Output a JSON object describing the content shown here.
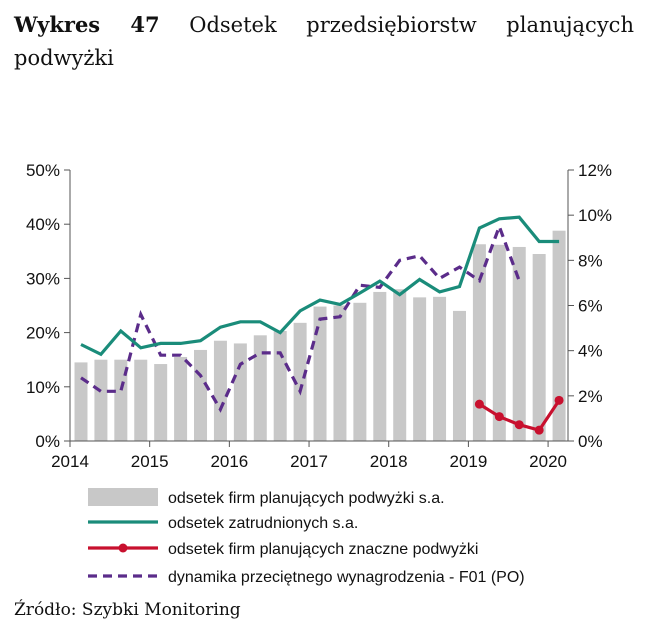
{
  "title_bold": "Wykres 47",
  "title_text": "Odsetek przedsiębiorstw planujących podwyżki",
  "source": "Źródło: Szybki Monitoring",
  "colors": {
    "bars": "#c8c8c8",
    "zatrudnionych": "#1a8c7a",
    "znaczne": "#c8102e",
    "dynamika": "#5b2c8a"
  },
  "chart_data": {
    "type": "bar",
    "x_ticks": [
      "2014",
      "2015",
      "2016",
      "2017",
      "2018",
      "2019",
      "2020"
    ],
    "y_left_ticks": [
      "0%",
      "10%",
      "20%",
      "30%",
      "40%",
      "50%"
    ],
    "y_right_ticks": [
      "0%",
      "2%",
      "4%",
      "6%",
      "8%",
      "10%",
      "12%"
    ],
    "ylim_left": [
      0,
      50
    ],
    "ylim_right": [
      0,
      12
    ],
    "legend_position": "bottom",
    "series": [
      {
        "name": "odsetek firm planujących podwyżki s.a.",
        "kind": "bar",
        "axis": "left",
        "x": [
          2014.0,
          2014.25,
          2014.5,
          2014.75,
          2015.0,
          2015.25,
          2015.5,
          2015.75,
          2016.0,
          2016.25,
          2016.5,
          2016.75,
          2017.0,
          2017.25,
          2017.5,
          2017.75,
          2018.0,
          2018.25,
          2018.5,
          2018.75,
          2019.0,
          2019.25,
          2019.5,
          2019.75,
          2020.0
        ],
        "values": [
          14.5,
          15.0,
          15.0,
          15.0,
          14.2,
          15.5,
          16.8,
          18.5,
          18.0,
          19.5,
          20.3,
          21.8,
          24.8,
          25.0,
          25.5,
          27.5,
          28.0,
          26.5,
          26.6,
          24.0,
          36.3,
          36.2,
          35.8,
          34.5,
          38.8
        ]
      },
      {
        "name": "odsetek zatrudnionych s.a.",
        "kind": "line",
        "axis": "left",
        "x": [
          2014.0,
          2014.25,
          2014.5,
          2014.75,
          2015.0,
          2015.25,
          2015.5,
          2015.75,
          2016.0,
          2016.25,
          2016.5,
          2016.75,
          2017.0,
          2017.25,
          2017.5,
          2017.75,
          2018.0,
          2018.25,
          2018.5,
          2018.75,
          2019.0,
          2019.25,
          2019.5,
          2019.75,
          2020.0
        ],
        "values": [
          17.8,
          16.0,
          20.3,
          17.2,
          18.0,
          18.0,
          18.5,
          21.0,
          22.0,
          22.0,
          20.0,
          24.0,
          26.0,
          25.2,
          27.3,
          29.5,
          27.0,
          29.8,
          27.5,
          28.5,
          39.3,
          41.0,
          41.3,
          36.8,
          36.8
        ]
      },
      {
        "name": "odsetek firm planujących znaczne podwyżki",
        "kind": "line-marker",
        "axis": "left",
        "x": [
          2019.0,
          2019.25,
          2019.5,
          2019.75,
          2020.0
        ],
        "values": [
          6.8,
          4.5,
          3.0,
          2.0,
          7.5
        ]
      },
      {
        "name": "dynamika przeciętnego wynagrodzenia - F01 (PO)",
        "kind": "dashed-line",
        "axis": "right",
        "x": [
          2014.0,
          2014.25,
          2014.5,
          2014.75,
          2015.0,
          2015.25,
          2015.5,
          2015.75,
          2016.0,
          2016.25,
          2016.5,
          2016.75,
          2017.0,
          2017.25,
          2017.5,
          2017.75,
          2018.0,
          2018.25,
          2018.5,
          2018.75,
          2019.0,
          2019.25,
          2019.5
        ],
        "values": [
          2.8,
          2.2,
          2.2,
          5.6,
          3.8,
          3.8,
          2.9,
          1.4,
          3.4,
          3.9,
          3.9,
          2.2,
          5.4,
          5.5,
          6.9,
          6.8,
          8.0,
          8.2,
          7.2,
          7.7,
          7.1,
          9.5,
          7.1
        ]
      }
    ]
  }
}
